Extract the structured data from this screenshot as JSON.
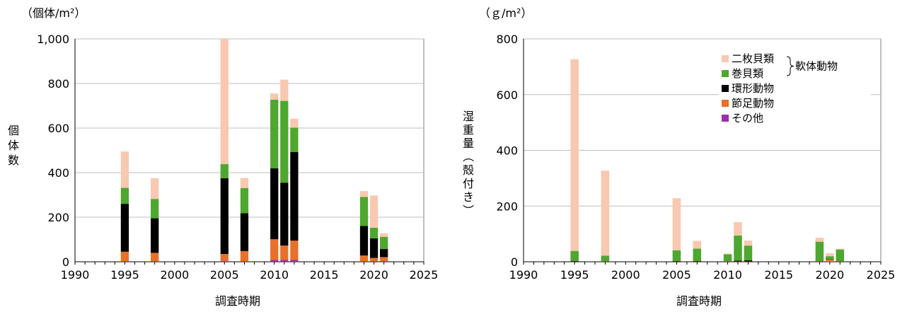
{
  "colors": {
    "二枚貝類": "#f8c8b0",
    "巻貝類": "#4ea72e",
    "環形動物": "#000000",
    "節足動物": "#e8702a",
    "その他": "#9b2fae",
    "grid": "#bfbfbf"
  },
  "chart_data": [
    {
      "type": "bar",
      "stacked": true,
      "unit_label": "（個体/m²）",
      "ylabel": "個体数",
      "xlabel": "調査時期",
      "xlim": [
        1990,
        2025
      ],
      "xticks": [
        "1990",
        "1995",
        "2000",
        "2005",
        "2010",
        "2015",
        "2020",
        "2025"
      ],
      "ylim": [
        0,
        1000
      ],
      "yticks": [
        "0",
        "200",
        "400",
        "600",
        "800",
        "1,000"
      ],
      "grid": true,
      "x": [
        1995,
        1998,
        2005,
        2007,
        2010,
        2011,
        2012,
        2019,
        2020,
        2021
      ],
      "series": [
        {
          "name": "その他",
          "values": [
            3,
            3,
            3,
            3,
            8,
            8,
            8,
            3,
            3,
            3
          ]
        },
        {
          "name": "節足動物",
          "values": [
            42,
            37,
            32,
            45,
            93,
            65,
            87,
            25,
            14,
            18
          ]
        },
        {
          "name": "環形動物",
          "values": [
            215,
            155,
            340,
            170,
            318,
            282,
            397,
            133,
            88,
            36
          ]
        },
        {
          "name": "巻貝類",
          "values": [
            72,
            87,
            63,
            113,
            308,
            367,
            110,
            130,
            48,
            55
          ]
        },
        {
          "name": "二枚貝類",
          "values": [
            163,
            93,
            562,
            45,
            28,
            95,
            40,
            26,
            144,
            16
          ]
        }
      ]
    },
    {
      "type": "bar",
      "stacked": true,
      "unit_label": "（ｇ/m²）",
      "ylabel": "湿重量（殻付き）",
      "xlabel": "調査時期",
      "xlim": [
        1990,
        2025
      ],
      "xticks": [
        "1990",
        "1995",
        "2000",
        "2005",
        "2010",
        "2015",
        "2020",
        "2025"
      ],
      "ylim": [
        0,
        800
      ],
      "yticks": [
        "0",
        "200",
        "400",
        "600",
        "800"
      ],
      "grid": true,
      "legend": {
        "placement": "top-right",
        "entries": [
          "二枚貝類",
          "巻貝類",
          "環形動物",
          "節足動物",
          "その他"
        ],
        "bracket_label": "軟体動物"
      },
      "x": [
        1995,
        1998,
        2005,
        2007,
        2010,
        2011,
        2012,
        2019,
        2020,
        2021
      ],
      "series": [
        {
          "name": "その他",
          "values": [
            0,
            0,
            0,
            0,
            0,
            0,
            0,
            0,
            0,
            0
          ]
        },
        {
          "name": "節足動物",
          "values": [
            1,
            1,
            1,
            1,
            1,
            1,
            1,
            1,
            8,
            1
          ]
        },
        {
          "name": "環形動物",
          "values": [
            2,
            1,
            2,
            2,
            1,
            3,
            4,
            1,
            1,
            1
          ]
        },
        {
          "name": "巻貝類",
          "values": [
            36,
            20,
            38,
            44,
            25,
            90,
            53,
            70,
            11,
            42
          ]
        },
        {
          "name": "二枚貝類",
          "values": [
            688,
            305,
            187,
            28,
            2,
            48,
            18,
            14,
            11,
            3
          ]
        }
      ]
    }
  ]
}
